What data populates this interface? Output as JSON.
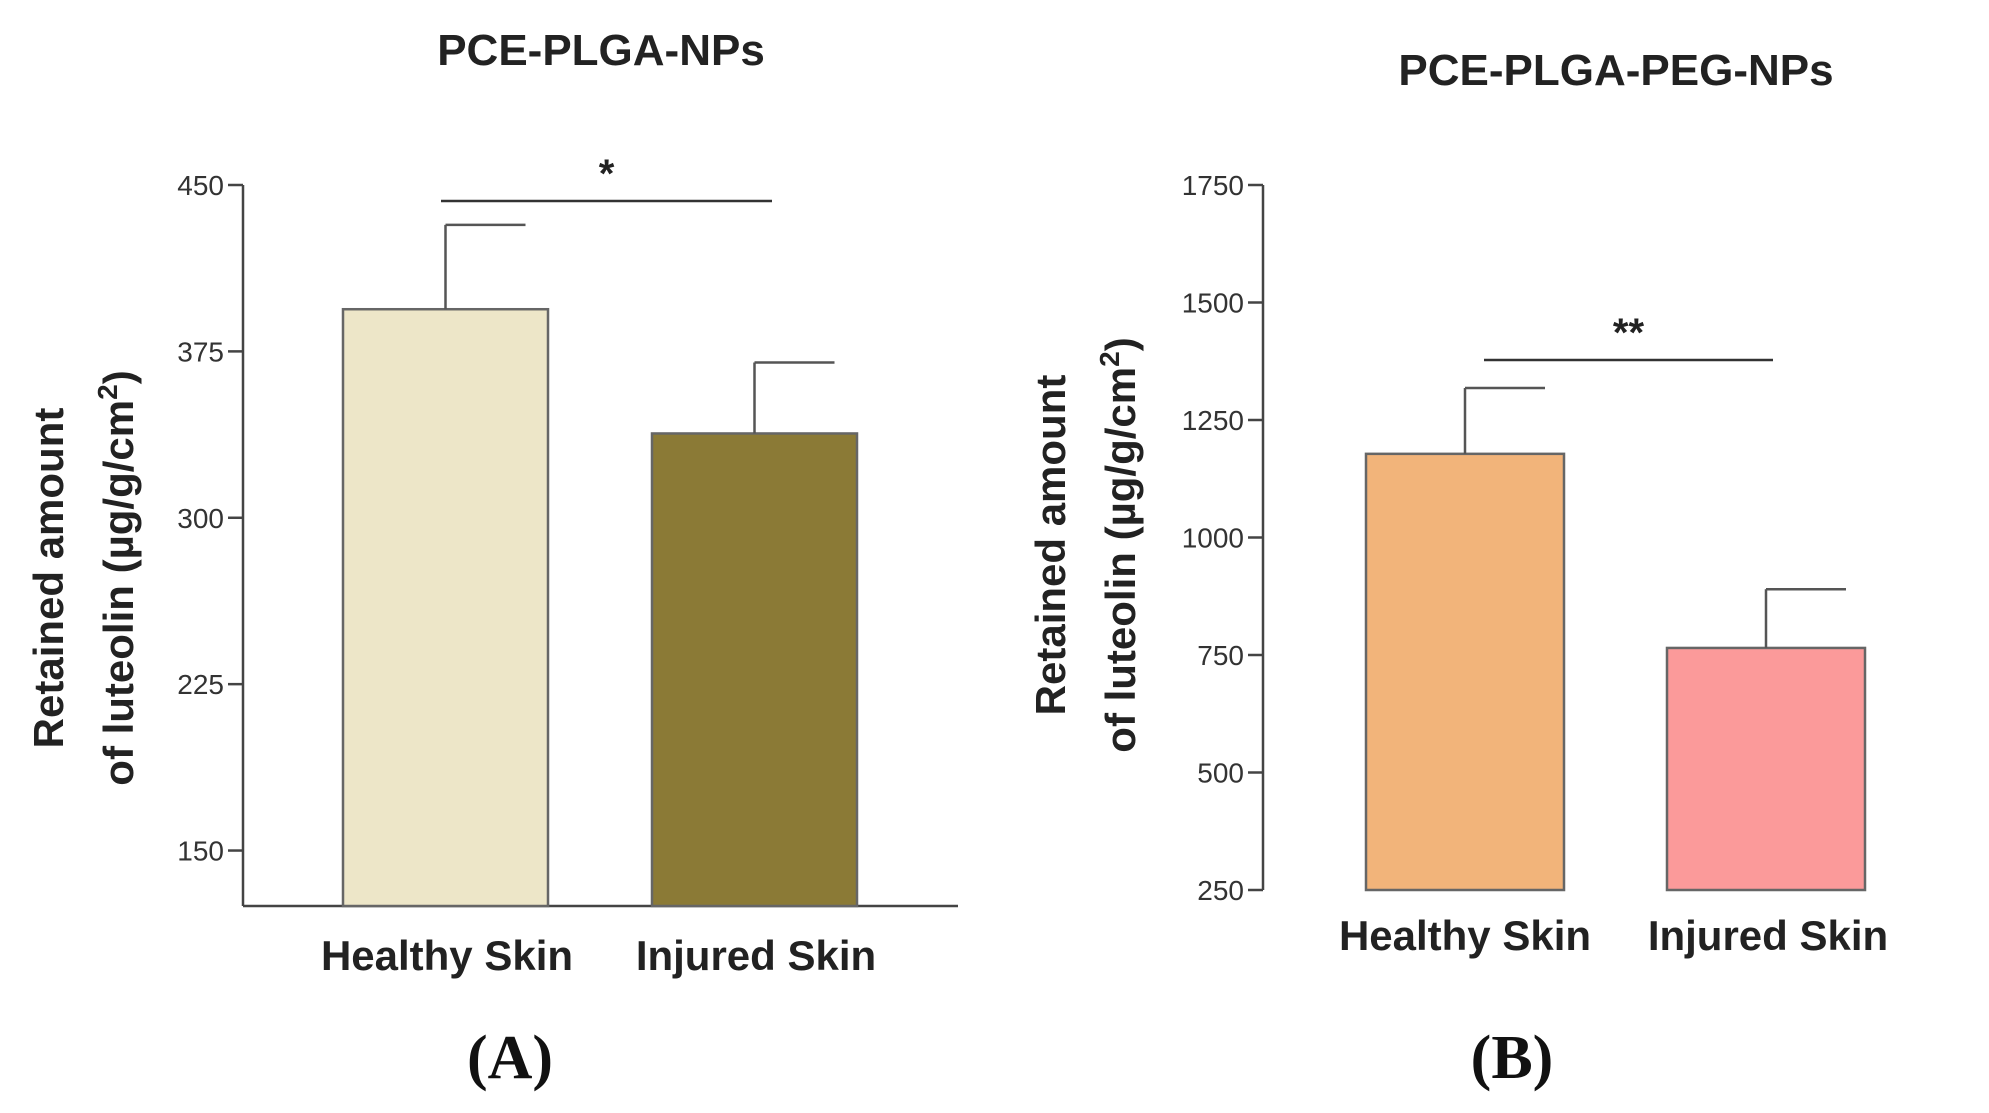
{
  "chart_data": [
    {
      "type": "bar",
      "panel_label": "(A)",
      "title": "PCE-PLGA-NPs",
      "ylabel_line1": "Retained amount",
      "ylabel_line2": "of luteolin (µg/g/cm",
      "ylabel_sup": "2",
      "ylabel_close": ")",
      "ylim": [
        125,
        450
      ],
      "yticks": [
        150,
        225,
        300,
        375,
        450
      ],
      "categories": [
        "Healthy Skin",
        "Injured Skin"
      ],
      "values": [
        394,
        338
      ],
      "errors": [
        38,
        32
      ],
      "colors": [
        "#ede6c8",
        "#8b7a36"
      ],
      "significance": "*"
    },
    {
      "type": "bar",
      "panel_label": "(B)",
      "title": "PCE-PLGA-PEG-NPs",
      "ylabel_line1": "Retained amount",
      "ylabel_line2": "of luteolin (µg/g/cm",
      "ylabel_sup": "2",
      "ylabel_close": ")",
      "ylim": [
        250,
        1750
      ],
      "yticks": [
        250,
        500,
        750,
        1000,
        1250,
        1500,
        1750
      ],
      "categories": [
        "Healthy Skin",
        "Injured Skin"
      ],
      "values": [
        1178,
        765
      ],
      "errors": [
        140,
        125
      ],
      "colors": [
        "#f2b47a",
        "#fb9a9a"
      ],
      "significance": "**"
    }
  ]
}
